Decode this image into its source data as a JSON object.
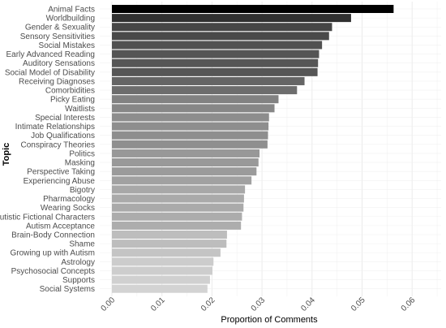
{
  "chart_data": {
    "type": "bar",
    "orientation": "horizontal",
    "title": "",
    "xlabel": "Proportion of Comments",
    "ylabel": "Topic",
    "xlim": [
      0,
      0.062
    ],
    "x_ticks": [
      0.0,
      0.01,
      0.02,
      0.03,
      0.04,
      0.05,
      0.06
    ],
    "x_tick_labels": [
      "0.00",
      "0.01",
      "0.02",
      "0.03",
      "0.04",
      "0.05",
      "0.06"
    ],
    "grid": true,
    "legend": "none",
    "color_scale": [
      "#000000",
      "#d3d3d3"
    ],
    "categories": [
      "Animal Facts",
      "Worldbuilding",
      "Gender & Sexuality",
      "Sensory Sensitivities",
      "Social Mistakes",
      "Early Advanced Reading",
      "Auditory Sensations",
      "Social Model of Disability",
      "Receiving Diagnoses",
      "Comorbidities",
      "Picky Eating",
      "Waitlists",
      "Special Interests",
      "Intimate Relationships",
      "Job Qualifications",
      "Conspiracy Theories",
      "Politics",
      "Masking",
      "Perspective Taking",
      "Experiencing Abuse",
      "Bigotry",
      "Pharmacology",
      "Wearing Socks",
      "Autistic Fictional Characters",
      "Autism Acceptance",
      "Brain-Body Connection",
      "Shame",
      "Growing up with Autism",
      "Astrology",
      "Psychosocial Concepts",
      "Supports",
      "Social Systems"
    ],
    "values": [
      0.0563,
      0.0478,
      0.044,
      0.0434,
      0.042,
      0.0414,
      0.0412,
      0.0411,
      0.0385,
      0.037,
      0.0333,
      0.0325,
      0.0314,
      0.0313,
      0.0312,
      0.0311,
      0.0295,
      0.0293,
      0.0289,
      0.0279,
      0.0266,
      0.0264,
      0.0263,
      0.026,
      0.0258,
      0.023,
      0.0229,
      0.0217,
      0.0203,
      0.0201,
      0.0196,
      0.0191
    ]
  }
}
